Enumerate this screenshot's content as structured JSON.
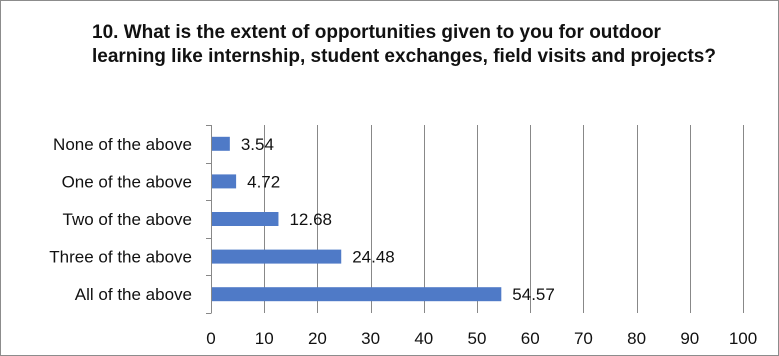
{
  "chart_data": {
    "type": "bar",
    "orientation": "horizontal",
    "title": "10. What is the extent of opportunities given to you for outdoor learning like internship, student exchanges, field visits and projects?",
    "categories": [
      "None of the above",
      "One of the above",
      "Two of the above",
      "Three of the above",
      "All of the above"
    ],
    "values": [
      3.54,
      4.72,
      12.68,
      24.48,
      54.57
    ],
    "data_labels": [
      "3.54",
      "4.72",
      "12.68",
      "24.48",
      "54.57"
    ],
    "xlim": [
      0,
      100
    ],
    "x_ticks": [
      0,
      10,
      20,
      30,
      40,
      50,
      60,
      70,
      80,
      90,
      100
    ],
    "grid": true,
    "legend": "none",
    "bar_color": "#4f7ac7"
  }
}
